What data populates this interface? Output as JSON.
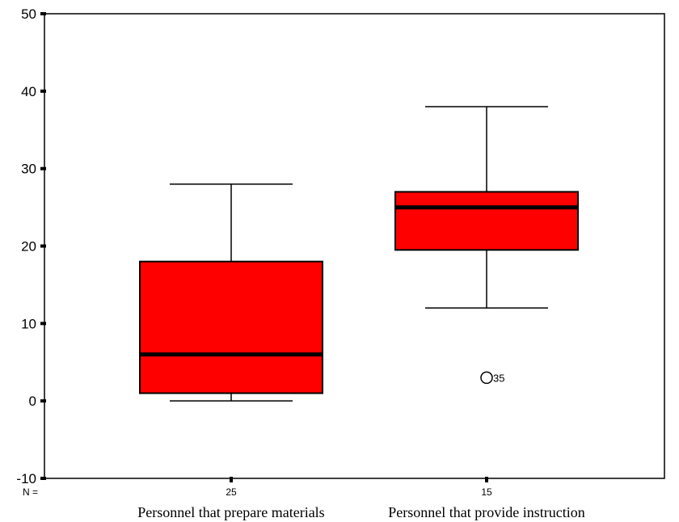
{
  "chart_data": {
    "type": "boxplot",
    "ylim": [
      -10,
      50
    ],
    "yticks": [
      -10,
      0,
      10,
      20,
      30,
      40,
      50
    ],
    "n_prefix": "N =",
    "colors": {
      "box_fill": "#ff0000",
      "stroke": "#000000"
    },
    "groups": [
      {
        "category": "Personnel that prepare materials",
        "n": "25",
        "min": 0,
        "q1": 1,
        "median": 6,
        "q3": 18,
        "max": 28,
        "outliers": []
      },
      {
        "category": "Personnel that provide instruction",
        "n": "15",
        "min": 12,
        "q1": 19.5,
        "median": 25,
        "q3": 27,
        "max": 38,
        "outliers": [
          {
            "value": 3,
            "label": "35"
          }
        ]
      }
    ]
  }
}
